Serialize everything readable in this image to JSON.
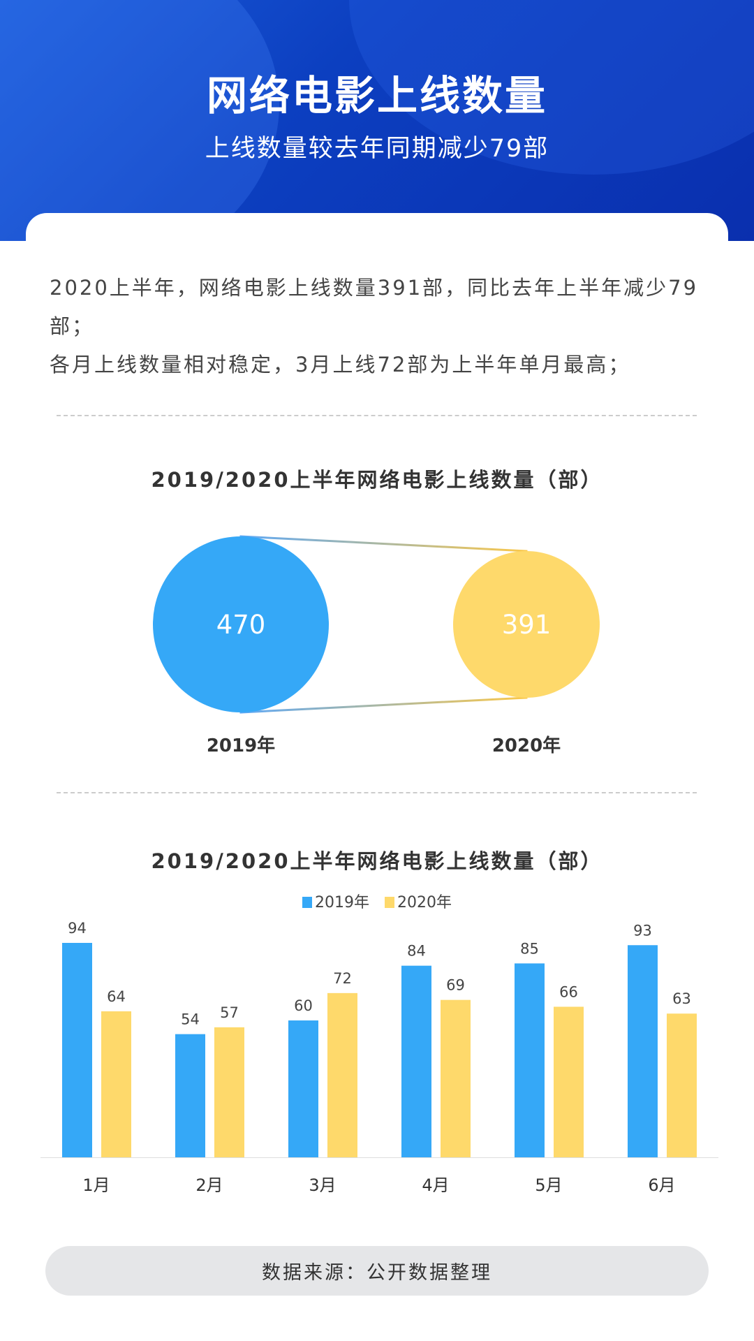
{
  "header": {
    "title": "网络电影上线数量",
    "subtitle": "上线数量较去年同期减少79部"
  },
  "summary": {
    "lines": [
      "2020上半年，网络电影上线数量391部，同比去年上半年减少79部；",
      "各月上线数量相对稳定，3月上线72部为上半年单月最高；"
    ]
  },
  "colors": {
    "y2019": "#35a8f7",
    "y2020": "#fed96b",
    "header": "#0c3fc0"
  },
  "chart_data": [
    {
      "type": "bubble",
      "title": "2019/2020上半年网络电影上线数量（部）",
      "categories": [
        "2019年",
        "2020年"
      ],
      "values": [
        470,
        391
      ]
    },
    {
      "type": "bar",
      "title": "2019/2020上半年网络电影上线数量（部）",
      "categories": [
        "1月",
        "2月",
        "3月",
        "4月",
        "5月",
        "6月"
      ],
      "series": [
        {
          "name": "2019年",
          "values": [
            94,
            54,
            60,
            84,
            85,
            93
          ]
        },
        {
          "name": "2020年",
          "values": [
            64,
            57,
            72,
            69,
            66,
            63
          ]
        }
      ],
      "legend": "top-center",
      "grid": false,
      "ylim": [
        0,
        100
      ]
    }
  ],
  "footer": {
    "source": "数据来源：公开数据整理"
  }
}
